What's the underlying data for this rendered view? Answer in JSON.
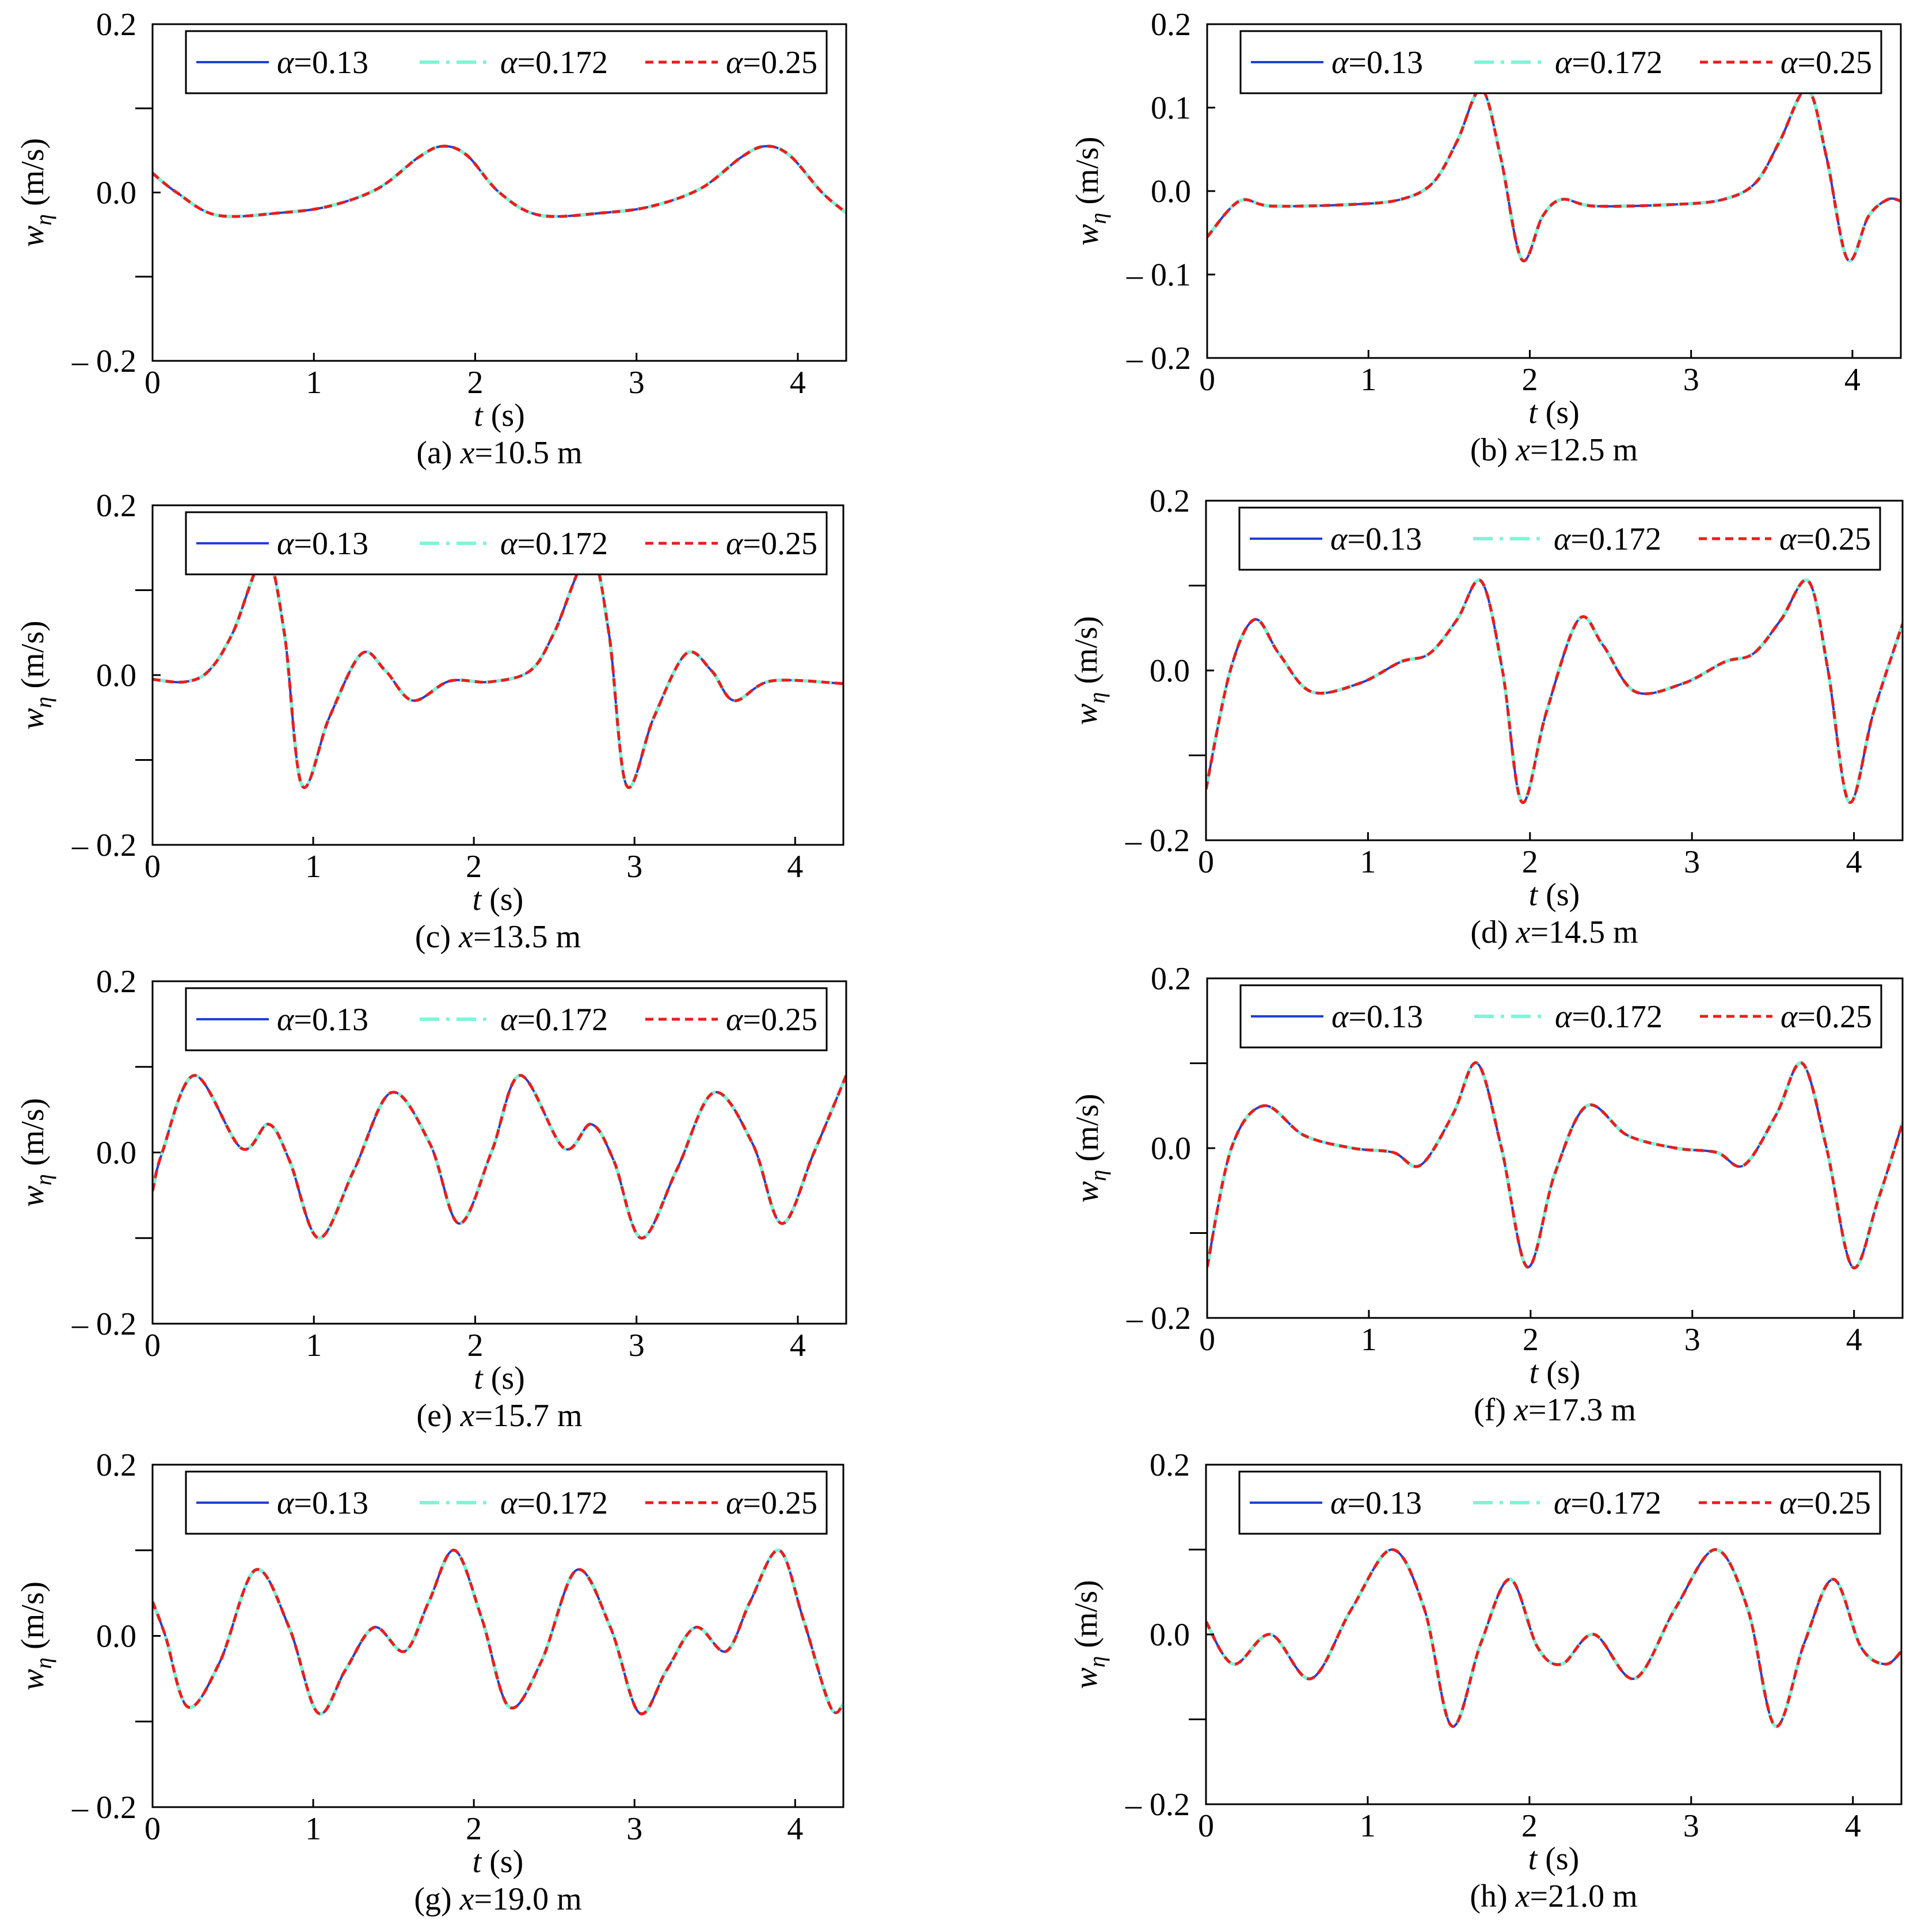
{
  "figure": {
    "legend_entries": [
      {
        "symbol": "α",
        "value": "=0.13",
        "color": "#1f3fd8",
        "style": "solid"
      },
      {
        "symbol": "α",
        "value": "=0.172",
        "color": "#7ff5d8",
        "style": "dashdot"
      },
      {
        "symbol": "α",
        "value": "=0.25",
        "color": "#ee1c1c",
        "style": "dashed"
      }
    ],
    "ylabel": {
      "main": "w",
      "sub": "η",
      "unit": " (m/s)"
    },
    "xlabel": {
      "main": "t",
      "unit": " (s)"
    },
    "xticks": [
      "0",
      "1",
      "2",
      "3",
      "4"
    ],
    "xtick_values": [
      0,
      1,
      2,
      3,
      4
    ],
    "xlim": [
      0,
      4.3
    ]
  },
  "chart_data": [
    {
      "type": "line",
      "caption": {
        "prefix": "(a) ",
        "var": "x",
        "rest": "=10.5 m"
      },
      "ylim": [
        -0.2,
        0.2
      ],
      "yticks": [
        {
          "value": 0.2,
          "label": "0.2"
        },
        {
          "value": 0.0,
          "label": "0.0"
        },
        {
          "value": -0.2,
          "label": "– 0.2"
        }
      ],
      "minor_yticks": [
        0.1,
        -0.1
      ],
      "series": [
        {
          "name": "α=0.13"
        },
        {
          "name": "α=0.172"
        },
        {
          "name": "α=0.25"
        }
      ],
      "x": [
        0,
        0.15,
        0.4,
        0.8,
        1.1,
        1.4,
        1.65,
        1.8,
        1.95,
        2.15,
        2.4,
        2.8,
        3.1,
        3.4,
        3.65,
        3.8,
        3.95,
        4.15,
        4.3
      ],
      "y": [
        0.023,
        0.0,
        -0.027,
        -0.024,
        -0.016,
        0.005,
        0.042,
        0.055,
        0.044,
        0.0,
        -0.027,
        -0.024,
        -0.016,
        0.005,
        0.042,
        0.055,
        0.044,
        0.0,
        -0.024
      ]
    },
    {
      "type": "line",
      "caption": {
        "prefix": "(b) ",
        "var": "x",
        "rest": "=12.5 m"
      },
      "ylim": [
        -0.2,
        0.2
      ],
      "yticks": [
        {
          "value": 0.2,
          "label": "0.2"
        },
        {
          "value": 0.1,
          "label": "0.1"
        },
        {
          "value": 0.0,
          "label": "0.0"
        },
        {
          "value": -0.1,
          "label": "– 0.1"
        },
        {
          "value": -0.2,
          "label": "– 0.2"
        }
      ],
      "minor_yticks": [],
      "series": [
        {
          "name": "α=0.13"
        },
        {
          "name": "α=0.172"
        },
        {
          "name": "α=0.25"
        }
      ],
      "x": [
        0,
        0.2,
        0.4,
        0.9,
        1.2,
        1.4,
        1.55,
        1.7,
        1.82,
        1.95,
        2.08,
        2.2,
        2.4,
        2.9,
        3.2,
        3.4,
        3.55,
        3.72,
        3.84,
        3.97,
        4.1,
        4.22,
        4.3
      ],
      "y": [
        -0.055,
        -0.012,
        -0.018,
        -0.016,
        -0.01,
        0.01,
        0.06,
        0.122,
        0.04,
        -0.082,
        -0.03,
        -0.01,
        -0.018,
        -0.016,
        -0.01,
        0.01,
        0.06,
        0.122,
        0.04,
        -0.082,
        -0.03,
        -0.01,
        -0.012
      ]
    },
    {
      "type": "line",
      "caption": {
        "prefix": "(c) ",
        "var": "x",
        "rest": "=13.5 m"
      },
      "ylim": [
        -0.2,
        0.2
      ],
      "yticks": [
        {
          "value": 0.2,
          "label": "0.2"
        },
        {
          "value": 0.0,
          "label": "0.0"
        },
        {
          "value": -0.2,
          "label": "– 0.2"
        }
      ],
      "minor_yticks": [
        0.1,
        -0.1
      ],
      "series": [
        {
          "name": "α=0.13"
        },
        {
          "name": "α=0.172"
        },
        {
          "name": "α=0.25"
        }
      ],
      "x": [
        0,
        0.2,
        0.35,
        0.5,
        0.7,
        0.82,
        0.93,
        1.1,
        1.3,
        1.45,
        1.62,
        1.85,
        2.1,
        2.35,
        2.5,
        2.72,
        2.84,
        2.95,
        3.12,
        3.32,
        3.48,
        3.62,
        3.85,
        4.3
      ],
      "y": [
        -0.005,
        -0.008,
        0.005,
        0.05,
        0.14,
        0.05,
        -0.13,
        -0.05,
        0.025,
        0.005,
        -0.03,
        -0.007,
        -0.008,
        0.005,
        0.05,
        0.142,
        0.05,
        -0.13,
        -0.05,
        0.025,
        0.005,
        -0.03,
        -0.007,
        -0.01
      ]
    },
    {
      "type": "line",
      "caption": {
        "prefix": "(d) ",
        "var": "x",
        "rest": "=14.5 m"
      },
      "ylim": [
        -0.2,
        0.2
      ],
      "yticks": [
        {
          "value": 0.2,
          "label": "0.2"
        },
        {
          "value": 0.0,
          "label": "0.0"
        },
        {
          "value": -0.2,
          "label": "– 0.2"
        }
      ],
      "minor_yticks": [
        0.1,
        -0.1
      ],
      "series": [
        {
          "name": "α=0.13"
        },
        {
          "name": "α=0.172"
        },
        {
          "name": "α=0.25"
        }
      ],
      "x": [
        0,
        0.15,
        0.3,
        0.45,
        0.65,
        0.95,
        1.2,
        1.38,
        1.55,
        1.7,
        1.83,
        1.95,
        2.1,
        2.3,
        2.45,
        2.65,
        2.95,
        3.2,
        3.38,
        3.55,
        3.72,
        3.84,
        3.97,
        4.12,
        4.3
      ],
      "y": [
        -0.14,
        0.0,
        0.06,
        0.02,
        -0.025,
        -0.015,
        0.01,
        0.02,
        0.06,
        0.105,
        0.0,
        -0.155,
        -0.05,
        0.06,
        0.03,
        -0.025,
        -0.015,
        0.01,
        0.02,
        0.06,
        0.105,
        0.0,
        -0.155,
        -0.05,
        0.055
      ]
    },
    {
      "type": "line",
      "caption": {
        "prefix": "(e) ",
        "var": "x",
        "rest": "=15.7 m"
      },
      "ylim": [
        -0.2,
        0.2
      ],
      "yticks": [
        {
          "value": 0.2,
          "label": "0.2"
        },
        {
          "value": 0.0,
          "label": "0.0"
        },
        {
          "value": -0.2,
          "label": "– 0.2"
        }
      ],
      "minor_yticks": [
        0.1,
        -0.1
      ],
      "series": [
        {
          "name": "α=0.13"
        },
        {
          "name": "α=0.172"
        },
        {
          "name": "α=0.25"
        }
      ],
      "x": [
        0,
        0.06,
        0.26,
        0.55,
        0.72,
        0.85,
        1.03,
        1.25,
        1.48,
        1.72,
        1.9,
        2.1,
        2.28,
        2.55,
        2.72,
        2.86,
        3.03,
        3.25,
        3.48,
        3.72,
        3.9,
        4.1,
        4.3
      ],
      "y": [
        -0.045,
        0.0,
        0.09,
        0.005,
        0.033,
        -0.01,
        -0.1,
        -0.02,
        0.07,
        0.01,
        -0.083,
        0.0,
        0.09,
        0.005,
        0.033,
        -0.01,
        -0.1,
        -0.02,
        0.07,
        0.01,
        -0.083,
        0.0,
        0.09
      ]
    },
    {
      "type": "line",
      "caption": {
        "prefix": "(f) ",
        "var": "x",
        "rest": "=17.3 m"
      },
      "ylim": [
        -0.2,
        0.2
      ],
      "yticks": [
        {
          "value": 0.2,
          "label": "0.2"
        },
        {
          "value": 0.0,
          "label": "0.0"
        },
        {
          "value": -0.2,
          "label": "– 0.2"
        }
      ],
      "minor_yticks": [
        0.1,
        -0.1
      ],
      "series": [
        {
          "name": "α=0.13"
        },
        {
          "name": "α=0.172"
        },
        {
          "name": "α=0.25"
        }
      ],
      "x": [
        0,
        0.15,
        0.35,
        0.6,
        0.9,
        1.15,
        1.32,
        1.52,
        1.67,
        1.82,
        1.98,
        2.15,
        2.35,
        2.6,
        2.9,
        3.15,
        3.32,
        3.52,
        3.68,
        3.83,
        3.99,
        4.15,
        4.3
      ],
      "y": [
        -0.14,
        0.0,
        0.05,
        0.015,
        0.0,
        -0.005,
        -0.02,
        0.04,
        0.1,
        0.0,
        -0.14,
        -0.03,
        0.05,
        0.015,
        0.0,
        -0.005,
        -0.02,
        0.04,
        0.1,
        0.0,
        -0.14,
        -0.06,
        0.03
      ]
    },
    {
      "type": "line",
      "caption": {
        "prefix": "(g) ",
        "var": "x",
        "rest": "=19.0 m"
      },
      "ylim": [
        -0.2,
        0.2
      ],
      "yticks": [
        {
          "value": 0.2,
          "label": "0.2"
        },
        {
          "value": 0.0,
          "label": "0.0"
        },
        {
          "value": -0.2,
          "label": "– 0.2"
        }
      ],
      "minor_yticks": [
        0.1,
        -0.1
      ],
      "series": [
        {
          "name": "α=0.13"
        },
        {
          "name": "α=0.172"
        },
        {
          "name": "α=0.25"
        }
      ],
      "x": [
        0,
        0.08,
        0.22,
        0.42,
        0.64,
        0.85,
        1.03,
        1.2,
        1.38,
        1.57,
        1.72,
        1.88,
        2.05,
        2.22,
        2.42,
        2.64,
        2.85,
        3.03,
        3.2,
        3.38,
        3.57,
        3.72,
        3.9,
        4.05,
        4.22,
        4.3
      ],
      "y": [
        0.04,
        0.0,
        -0.083,
        -0.03,
        0.077,
        0.01,
        -0.09,
        -0.04,
        0.01,
        -0.018,
        0.04,
        0.1,
        0.02,
        -0.083,
        -0.03,
        0.077,
        0.01,
        -0.09,
        -0.04,
        0.01,
        -0.018,
        0.04,
        0.1,
        0.02,
        -0.083,
        -0.08
      ]
    },
    {
      "type": "line",
      "caption": {
        "prefix": "(h) ",
        "var": "x",
        "rest": "=21.0 m"
      },
      "ylim": [
        -0.2,
        0.2
      ],
      "yticks": [
        {
          "value": 0.2,
          "label": "0.2"
        },
        {
          "value": 0.0,
          "label": "0.0"
        },
        {
          "value": -0.2,
          "label": "– 0.2"
        }
      ],
      "minor_yticks": [
        0.1,
        -0.1
      ],
      "series": [
        {
          "name": "α=0.13"
        },
        {
          "name": "α=0.172"
        },
        {
          "name": "α=0.25"
        }
      ],
      "x": [
        0,
        0.17,
        0.4,
        0.65,
        0.9,
        1.15,
        1.35,
        1.52,
        1.7,
        1.88,
        2.05,
        2.2,
        2.4,
        2.65,
        2.9,
        3.15,
        3.35,
        3.52,
        3.7,
        3.88,
        4.05,
        4.2,
        4.3
      ],
      "y": [
        0.015,
        -0.035,
        0.0,
        -0.052,
        0.03,
        0.1,
        0.03,
        -0.108,
        -0.01,
        0.065,
        -0.015,
        -0.035,
        0.0,
        -0.052,
        0.03,
        0.1,
        0.03,
        -0.108,
        -0.01,
        0.065,
        -0.015,
        -0.035,
        -0.02
      ]
    }
  ]
}
